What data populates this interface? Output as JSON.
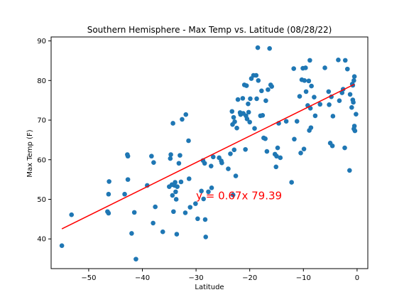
{
  "chart_data": {
    "type": "scatter",
    "title": "Southern Hemisphere - Max Temp vs. Latitude (08/28/22)",
    "xlabel": "Latitude",
    "ylabel": "Max Temp (F)",
    "xlim": [
      -57,
      2
    ],
    "ylim": [
      32.5,
      91
    ],
    "xticks": [
      -50,
      -40,
      -30,
      -20,
      -10,
      0
    ],
    "yticks": [
      40,
      50,
      60,
      70,
      80,
      90
    ],
    "grid": false,
    "point_color": "#1f77b4",
    "regression": {
      "slope": 0.67,
      "intercept": 79.39,
      "color": "#ff0000",
      "x_range": [
        -55,
        -0.5
      ],
      "equation_label": "y = 0.67x 79.39",
      "label_at": [
        -30,
        50
      ]
    },
    "points": [
      [
        -55,
        38.3
      ],
      [
        -53.2,
        46.1
      ],
      [
        -46.5,
        46.9
      ],
      [
        -46.3,
        46.5
      ],
      [
        -46.3,
        51.3
      ],
      [
        -46.2,
        54.5
      ],
      [
        -43.3,
        51.3
      ],
      [
        -42.8,
        61.3
      ],
      [
        -42.7,
        60.9
      ],
      [
        -42.7,
        55.0
      ],
      [
        -42.0,
        41.4
      ],
      [
        -41.5,
        46.7
      ],
      [
        -41.2,
        34.9
      ],
      [
        -39.1,
        53.5
      ],
      [
        -38.3,
        60.9
      ],
      [
        -38.0,
        44.0
      ],
      [
        -37.9,
        59.3
      ],
      [
        -37.6,
        48.1
      ],
      [
        -36.2,
        41.8
      ],
      [
        -35.0,
        53.2
      ],
      [
        -34.8,
        60.3
      ],
      [
        -34.7,
        61.3
      ],
      [
        -34.5,
        53.7
      ],
      [
        -34.4,
        51.0
      ],
      [
        -34.3,
        69.2
      ],
      [
        -34.2,
        46.9
      ],
      [
        -34.0,
        53.5
      ],
      [
        -33.9,
        54.3
      ],
      [
        -33.8,
        51.9
      ],
      [
        -33.7,
        50.0
      ],
      [
        -33.6,
        41.2
      ],
      [
        -33.5,
        53.2
      ],
      [
        -33.2,
        59.1
      ],
      [
        -33.0,
        61.1
      ],
      [
        -32.8,
        54.4
      ],
      [
        -32.6,
        70.2
      ],
      [
        -32.0,
        46.6
      ],
      [
        -31.9,
        71.4
      ],
      [
        -31.4,
        64.8
      ],
      [
        -31.3,
        55.2
      ],
      [
        -31.1,
        48.0
      ],
      [
        -30.1,
        48.9
      ],
      [
        -29.7,
        45.1
      ],
      [
        -29.0,
        52.1
      ],
      [
        -28.7,
        59.8
      ],
      [
        -28.6,
        50.1
      ],
      [
        -28.4,
        59.1
      ],
      [
        -28.3,
        44.9
      ],
      [
        -28.2,
        40.5
      ],
      [
        -27.7,
        51.9
      ],
      [
        -27.2,
        58.4
      ],
      [
        -27.1,
        52.9
      ],
      [
        -26.8,
        60.7
      ],
      [
        -25.7,
        60.5
      ],
      [
        -25.3,
        59.7
      ],
      [
        -25.2,
        59.2
      ],
      [
        -24.0,
        57.7
      ],
      [
        -23.6,
        61.5
      ],
      [
        -23.3,
        72.2
      ],
      [
        -23.2,
        68.9
      ],
      [
        -23.1,
        51.1
      ],
      [
        -23.0,
        70.7
      ],
      [
        -22.9,
        62.5
      ],
      [
        -22.8,
        69.6
      ],
      [
        -22.6,
        55.9
      ],
      [
        -22.4,
        68.0
      ],
      [
        -22.2,
        75.2
      ],
      [
        -21.8,
        71.9
      ],
      [
        -21.7,
        71.4
      ],
      [
        -21.3,
        75.5
      ],
      [
        -21.2,
        71.7
      ],
      [
        -21.0,
        78.9
      ],
      [
        -20.8,
        62.6
      ],
      [
        -20.7,
        71.1
      ],
      [
        -20.6,
        78.7
      ],
      [
        -20.5,
        70.3
      ],
      [
        -20.3,
        74.1
      ],
      [
        -20.2,
        72.0
      ],
      [
        -20.0,
        69.5
      ],
      [
        -19.9,
        75.4
      ],
      [
        -19.7,
        80.5
      ],
      [
        -19.3,
        81.3
      ],
      [
        -19.1,
        67.9
      ],
      [
        -18.8,
        81.3
      ],
      [
        -18.7,
        75.4
      ],
      [
        -18.5,
        88.3
      ],
      [
        -18.4,
        80.0
      ],
      [
        -18.0,
        71.1
      ],
      [
        -17.8,
        77.4
      ],
      [
        -17.6,
        71.2
      ],
      [
        -17.4,
        65.5
      ],
      [
        -17.1,
        65.3
      ],
      [
        -17.0,
        74.9
      ],
      [
        -16.8,
        62.1
      ],
      [
        -16.6,
        77.7
      ],
      [
        -16.3,
        88.1
      ],
      [
        -16.1,
        78.9
      ],
      [
        -15.9,
        78.5
      ],
      [
        -15.3,
        61.4
      ],
      [
        -15.1,
        58.2
      ],
      [
        -15.0,
        60.9
      ],
      [
        -14.8,
        63.0
      ],
      [
        -14.6,
        69.2
      ],
      [
        -14.3,
        60.5
      ],
      [
        -13.2,
        69.7
      ],
      [
        -12.2,
        54.3
      ],
      [
        -11.8,
        83.0
      ],
      [
        -11.7,
        65.2
      ],
      [
        -11.2,
        69.7
      ],
      [
        -10.7,
        76.0
      ],
      [
        -10.5,
        61.7
      ],
      [
        -10.3,
        80.2
      ],
      [
        -10.1,
        83.1
      ],
      [
        -9.9,
        62.7
      ],
      [
        -9.8,
        80.0
      ],
      [
        -9.6,
        83.2
      ],
      [
        -9.5,
        77.2
      ],
      [
        -9.2,
        73.7
      ],
      [
        -9.0,
        79.9
      ],
      [
        -8.9,
        67.4
      ],
      [
        -8.8,
        85.1
      ],
      [
        -8.7,
        73.0
      ],
      [
        -8.6,
        68.1
      ],
      [
        -8.5,
        78.6
      ],
      [
        -8.0,
        75.8
      ],
      [
        -7.8,
        71.1
      ],
      [
        -6.9,
        74.0
      ],
      [
        -6.0,
        83.2
      ],
      [
        -5.3,
        77.2
      ],
      [
        -5.2,
        73.9
      ],
      [
        -5.0,
        64.2
      ],
      [
        -4.8,
        75.9
      ],
      [
        -4.6,
        63.5
      ],
      [
        -4.5,
        71.0
      ],
      [
        -3.5,
        85.2
      ],
      [
        -3.3,
        74.9
      ],
      [
        -2.8,
        76.9
      ],
      [
        -2.6,
        77.8
      ],
      [
        -2.3,
        63.0
      ],
      [
        -2.2,
        85.1
      ],
      [
        -1.8,
        82.9
      ],
      [
        -1.4,
        57.3
      ],
      [
        -1.3,
        76.5
      ],
      [
        -1.0,
        73.2
      ],
      [
        -0.9,
        79.1
      ],
      [
        -0.8,
        78.8
      ],
      [
        -0.8,
        75.1
      ],
      [
        -0.7,
        74.5
      ],
      [
        -0.6,
        80.0
      ],
      [
        -0.6,
        67.8
      ],
      [
        -0.5,
        68.5
      ],
      [
        -0.5,
        81.0
      ],
      [
        -0.4,
        67.3
      ],
      [
        -0.2,
        71.5
      ]
    ]
  }
}
